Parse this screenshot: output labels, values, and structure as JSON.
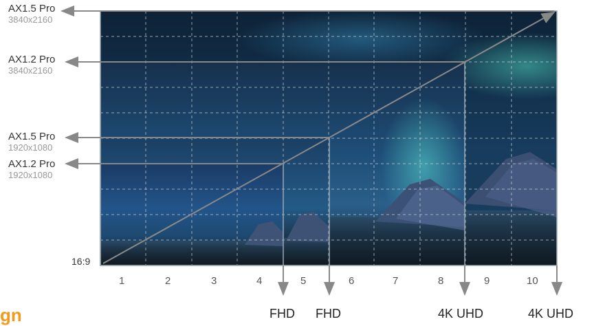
{
  "left_labels": [
    {
      "model": "AX1.5 Pro",
      "resolution": "3840x2160"
    },
    {
      "model": "AX1.2 Pro",
      "resolution": "3840x2160"
    },
    {
      "model": "AX1.5 Pro",
      "resolution": "1920x1080"
    },
    {
      "model": "AX1.2 Pro",
      "resolution": "1920x1080"
    }
  ],
  "aspect_ratio": "16:9",
  "x_ticks": [
    "1",
    "2",
    "3",
    "4",
    "5",
    "6",
    "7",
    "8",
    "9",
    "10"
  ],
  "bottom_labels": [
    "FHD",
    "FHD",
    "4K UHD",
    "4K UHD"
  ],
  "logo_fragment": "gn",
  "colors": {
    "logo": "#f39a1e",
    "arrow": "#888888",
    "grid": "#cfd6dc"
  }
}
